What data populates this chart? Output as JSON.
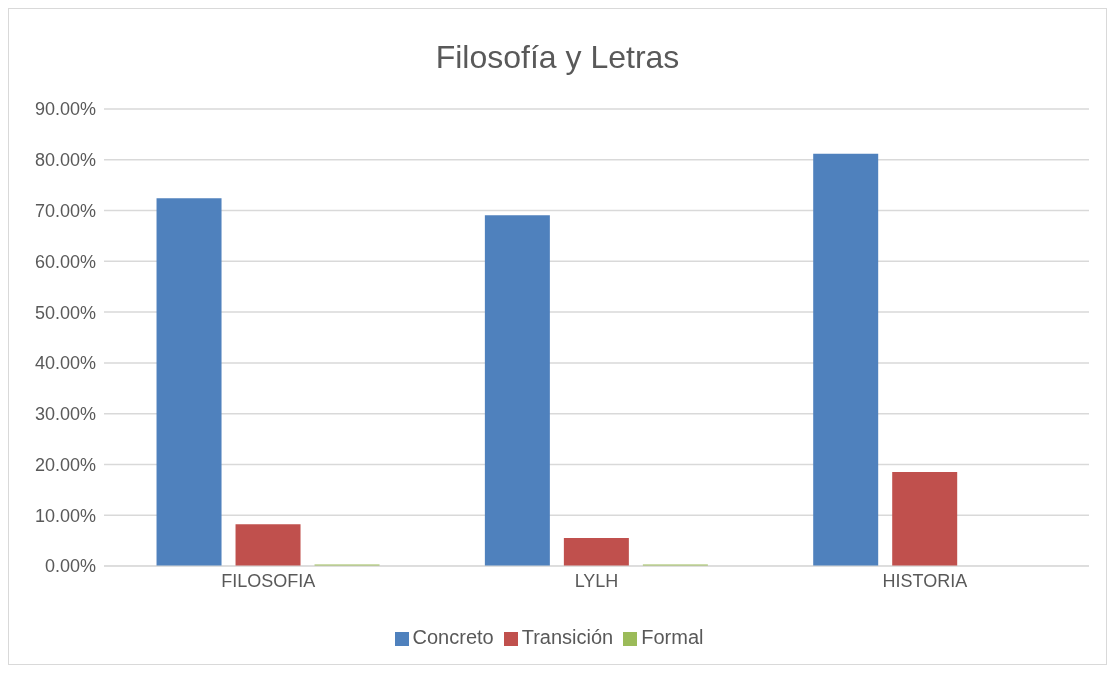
{
  "chart_data": {
    "type": "bar",
    "title": "Filosofía y Letras",
    "categories": [
      "FILOSOFIA",
      "LYLH",
      "HISTORIA"
    ],
    "series": [
      {
        "name": "Concreto",
        "color": "#4f81bd",
        "values": [
          72.4,
          69.1,
          81.2
        ]
      },
      {
        "name": "Transición",
        "color": "#c0504d",
        "values": [
          8.2,
          5.5,
          18.5
        ]
      },
      {
        "name": "Formal",
        "color": "#9bbb59",
        "values": [
          0.3,
          0.3,
          0
        ]
      }
    ],
    "ylim": [
      0,
      90
    ],
    "yticks": [
      {
        "value": 0,
        "label": "0.00%"
      },
      {
        "value": 10,
        "label": "10.00%"
      },
      {
        "value": 20,
        "label": "20.00%"
      },
      {
        "value": 30,
        "label": "30.00%"
      },
      {
        "value": 40,
        "label": "40.00%"
      },
      {
        "value": 50,
        "label": "50.00%"
      },
      {
        "value": 60,
        "label": "60.00%"
      },
      {
        "value": 70,
        "label": "70.00%"
      },
      {
        "value": 80,
        "label": "80.00%"
      },
      {
        "value": 90,
        "label": "90.00%"
      }
    ],
    "grid": "y",
    "legend": "bottom"
  }
}
